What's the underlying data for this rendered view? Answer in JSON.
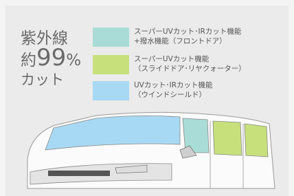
{
  "headline": {
    "line1": "紫外線",
    "prefix": "約",
    "number": "99",
    "unit": "%",
    "line3": "カット"
  },
  "legend": {
    "items": [
      {
        "color": "#a9dcd6",
        "line1": "スーパーUVカット･IRカット機能",
        "line2": "+撥水機能（フロントドア）"
      },
      {
        "color": "#c8e07c",
        "line1": "スーパーUVカット機能",
        "line2": "（スライドドア･リヤクォーター）"
      },
      {
        "color": "#a8d9f4",
        "line1": "UVカット･IRカット機能",
        "line2": "（ウインドシールド）"
      }
    ]
  }
}
